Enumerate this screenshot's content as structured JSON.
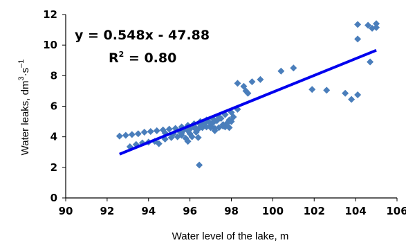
{
  "chart_data": {
    "type": "scatter",
    "xlabel": "Water level of the lake, m",
    "ylabel_main": "Water leaks, dm",
    "ylabel_unit_exp1": "3",
    "ylabel_unit_mid": "·s",
    "ylabel_unit_exp2": "–1",
    "xlim": [
      90,
      106
    ],
    "ylim": [
      0,
      12
    ],
    "xticks": [
      "90",
      "92",
      "94",
      "96",
      "98",
      "100",
      "102",
      "104",
      "106"
    ],
    "yticks": [
      "0",
      "2",
      "4",
      "6",
      "8",
      "10",
      "12"
    ],
    "grid": false,
    "marker_color": "#4a7ebb",
    "trend_color": "#0000ee",
    "equation": "y = 0.548x - 47.88",
    "r2_prefix": "R",
    "r2_exp": "2",
    "r2_suffix": " = 0.80",
    "trendline": {
      "slope": 0.548,
      "intercept": -47.88,
      "x_start": 92.6,
      "x_end": 105.0
    },
    "points": [
      [
        92.6,
        4.05
      ],
      [
        92.9,
        4.1
      ],
      [
        93.2,
        4.15
      ],
      [
        93.5,
        4.2
      ],
      [
        93.8,
        4.3
      ],
      [
        94.1,
        4.35
      ],
      [
        94.4,
        4.4
      ],
      [
        94.7,
        4.45
      ],
      [
        95.0,
        4.5
      ],
      [
        95.3,
        4.55
      ],
      [
        95.6,
        4.65
      ],
      [
        95.9,
        4.75
      ],
      [
        96.2,
        4.85
      ],
      [
        96.5,
        5.0
      ],
      [
        96.8,
        5.1
      ],
      [
        97.1,
        5.2
      ],
      [
        97.4,
        5.3
      ],
      [
        97.7,
        5.45
      ],
      [
        98.0,
        5.6
      ],
      [
        98.3,
        5.8
      ],
      [
        93.1,
        3.35
      ],
      [
        93.4,
        3.5
      ],
      [
        93.7,
        3.6
      ],
      [
        94.0,
        3.65
      ],
      [
        94.3,
        3.7
      ],
      [
        94.5,
        3.55
      ],
      [
        94.8,
        3.85
      ],
      [
        95.1,
        3.95
      ],
      [
        95.4,
        4.0
      ],
      [
        95.6,
        4.1
      ],
      [
        95.8,
        3.9
      ],
      [
        95.9,
        3.7
      ],
      [
        96.0,
        4.2
      ],
      [
        96.1,
        4.0
      ],
      [
        96.3,
        4.3
      ],
      [
        96.4,
        4.5
      ],
      [
        96.6,
        4.6
      ],
      [
        96.8,
        4.65
      ],
      [
        97.0,
        4.7
      ],
      [
        97.2,
        4.55
      ],
      [
        97.4,
        4.6
      ],
      [
        97.6,
        4.8
      ],
      [
        97.8,
        4.9
      ],
      [
        97.9,
        5.1
      ],
      [
        98.1,
        5.3
      ],
      [
        94.8,
        4.25
      ],
      [
        95.2,
        4.2
      ],
      [
        95.5,
        4.35
      ],
      [
        95.7,
        4.45
      ],
      [
        96.0,
        4.5
      ],
      [
        96.3,
        4.55
      ],
      [
        96.5,
        4.8
      ],
      [
        96.7,
        4.9
      ],
      [
        96.9,
        5.0
      ],
      [
        97.1,
        4.9
      ],
      [
        97.3,
        5.05
      ],
      [
        97.5,
        5.2
      ],
      [
        97.7,
        4.65
      ],
      [
        97.9,
        4.6
      ],
      [
        98.0,
        5.0
      ],
      [
        96.4,
        3.95
      ],
      [
        96.2,
        4.6
      ],
      [
        95.9,
        4.4
      ],
      [
        95.6,
        4.25
      ],
      [
        97.0,
        4.6
      ],
      [
        97.2,
        4.4
      ],
      [
        97.6,
        4.7
      ],
      [
        96.45,
        2.15
      ],
      [
        98.3,
        7.5
      ],
      [
        98.6,
        7.3
      ],
      [
        98.7,
        7.0
      ],
      [
        98.8,
        6.85
      ],
      [
        99.0,
        7.6
      ],
      [
        99.4,
        7.75
      ],
      [
        100.4,
        8.3
      ],
      [
        101.0,
        8.5
      ],
      [
        101.9,
        7.1
      ],
      [
        102.6,
        7.05
      ],
      [
        103.5,
        6.85
      ],
      [
        103.8,
        6.45
      ],
      [
        104.1,
        6.75
      ],
      [
        104.1,
        10.4
      ],
      [
        104.1,
        11.35
      ],
      [
        104.6,
        11.3
      ],
      [
        104.8,
        11.1
      ],
      [
        105.0,
        11.4
      ],
      [
        105.0,
        11.15
      ],
      [
        104.7,
        8.9
      ]
    ]
  }
}
